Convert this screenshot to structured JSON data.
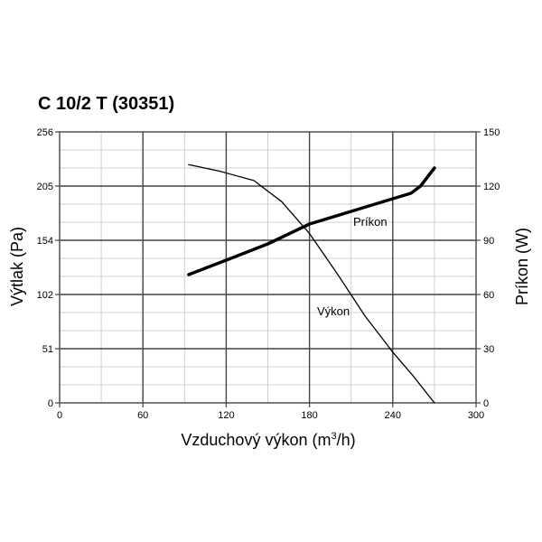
{
  "chart_data": {
    "type": "line",
    "title": "C 10/2 T (30351)",
    "xlabel": "Vzduchový výkon (m³/h)",
    "xlabel_main": "Vzduchový výkon (m",
    "xlabel_sup": "3",
    "xlabel_end": "/h)",
    "ylabel": "Výtlak (Pa)",
    "y2label": "Príkon (W)",
    "xlim": [
      0,
      300
    ],
    "ylim": [
      0,
      256
    ],
    "y2lim": [
      0,
      150
    ],
    "x_ticks": [
      "0",
      "60",
      "120",
      "180",
      "240",
      "300"
    ],
    "y_ticks": [
      "0",
      "51",
      "102",
      "154",
      "205",
      "256"
    ],
    "y2_ticks": [
      "0",
      "30",
      "60",
      "90",
      "120",
      "150"
    ],
    "grid": true,
    "series": [
      {
        "name": "Výkon",
        "axis": "left",
        "style": "thin",
        "x": [
          93,
          115,
          140,
          160,
          180,
          200,
          220,
          240,
          255,
          270
        ],
        "y": [
          225,
          219,
          210,
          190,
          160,
          122,
          82,
          48,
          25,
          0
        ]
      },
      {
        "name": "Príkon",
        "axis": "right",
        "style": "thick",
        "x": [
          93,
          120,
          150,
          180,
          210,
          240,
          253,
          260,
          270
        ],
        "y": [
          71,
          79,
          88,
          99,
          106,
          113,
          116,
          120,
          130
        ]
      }
    ]
  }
}
